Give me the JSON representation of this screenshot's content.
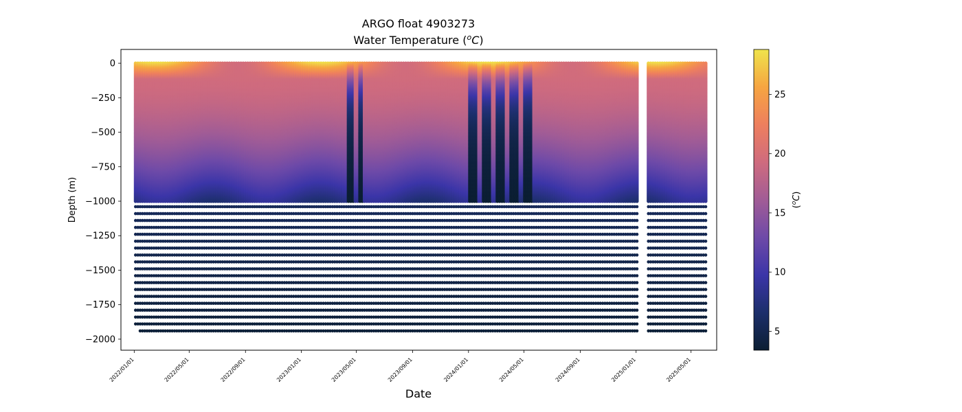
{
  "chart_data": {
    "type": "scatter",
    "title_line1": "ARGO float 4903273",
    "title_line2": "Water Temperature (",
    "title_unit_sup": "o",
    "title_unit_letter": "C",
    "title_close": ")",
    "xlabel": "Date",
    "ylabel": "Depth (m)",
    "colorbar_label_open": "(",
    "colorbar_label_sup": "o",
    "colorbar_label_letter": "C",
    "colorbar_label_close": ")",
    "xlim_days": [
      -29,
      1272
    ],
    "ylim": [
      -2080,
      100
    ],
    "x_ticks": [
      {
        "label": "2022/01/01",
        "day": 0
      },
      {
        "label": "2022/05/01",
        "day": 120
      },
      {
        "label": "2022/09/01",
        "day": 243
      },
      {
        "label": "2023/01/01",
        "day": 365
      },
      {
        "label": "2023/05/01",
        "day": 485
      },
      {
        "label": "2023/09/01",
        "day": 608
      },
      {
        "label": "2024/01/01",
        "day": 730
      },
      {
        "label": "2024/05/01",
        "day": 851
      },
      {
        "label": "2024/09/01",
        "day": 974
      },
      {
        "label": "2025/01/01",
        "day": 1096
      },
      {
        "label": "2025/05/01",
        "day": 1216
      }
    ],
    "y_ticks": [
      {
        "label": "0",
        "value": 0
      },
      {
        "label": "−250",
        "value": -250
      },
      {
        "label": "−500",
        "value": -500
      },
      {
        "label": "−750",
        "value": -750
      },
      {
        "label": "−1000",
        "value": -1000
      },
      {
        "label": "−1250",
        "value": -1250
      },
      {
        "label": "−1500",
        "value": -1500
      },
      {
        "label": "−1750",
        "value": -1750
      },
      {
        "label": "−2000",
        "value": -2000
      }
    ],
    "colorbar": {
      "vmin": 3.4,
      "vmax": 28.8,
      "ticks": [
        {
          "label": "5",
          "value": 5
        },
        {
          "label": "10",
          "value": 10
        },
        {
          "label": "15",
          "value": 15
        },
        {
          "label": "20",
          "value": 20
        },
        {
          "label": "25",
          "value": 25
        }
      ],
      "colormap": [
        "#0b1e33",
        "#1c2f6b",
        "#3b35a8",
        "#6e4aa8",
        "#a15c96",
        "#cf6b7e",
        "#ee7f5e",
        "#f6a541",
        "#efe44c"
      ]
    },
    "profiles": {
      "start_day": 3,
      "end_day": 1248,
      "interval_days": 5,
      "data_gap_days": [
        1099,
        1121
      ],
      "surface_temp_range": [
        19.5,
        28.5
      ],
      "temp_at_1000m_range": [
        4.5,
        9.5
      ],
      "deep_temp_below_1000m": [
        3.6,
        6.5
      ],
      "max_depth": -1980,
      "cold_intrusion_periods_days": [
        {
          "start": 468,
          "end": 500
        },
        {
          "start": 730,
          "end": 880
        }
      ]
    }
  }
}
